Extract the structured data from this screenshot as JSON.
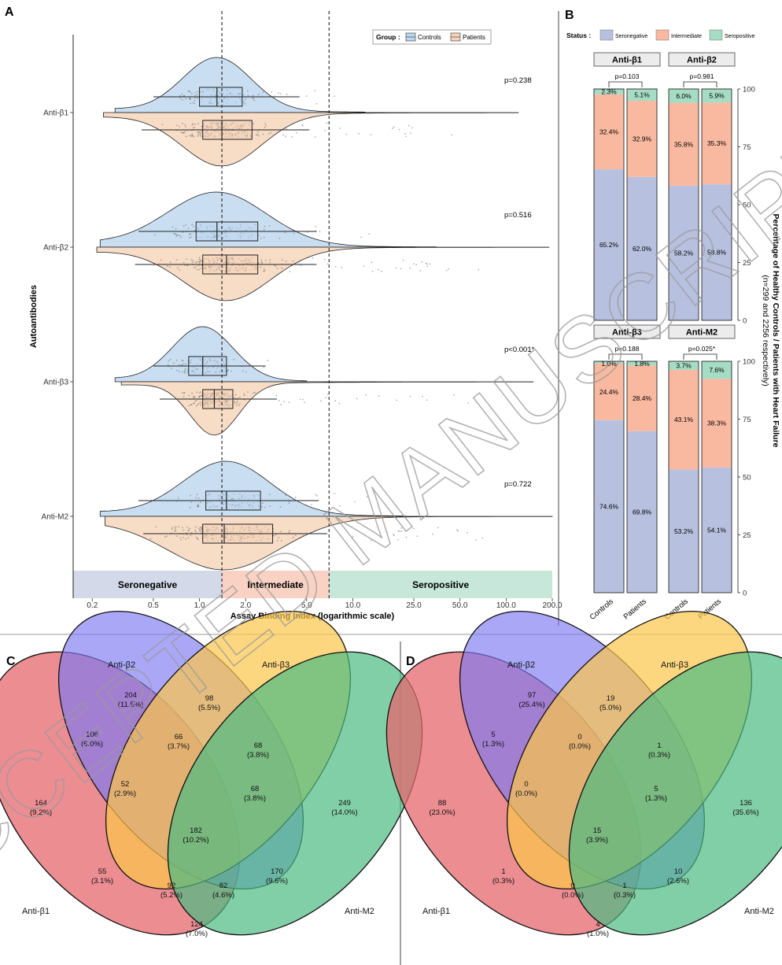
{
  "panels": {
    "a": "A",
    "b": "B",
    "c": "C",
    "d": "D"
  },
  "watermark": "ACCEPTED MANUSCRIPT",
  "panel_a": {
    "type": "raincloud",
    "y_axis_label": "Autoantibodies",
    "x_axis_label": "Assay Binding Index (logarithmic scale)",
    "x_ticks": [
      "0.2",
      "0.5",
      "1.0",
      "2.0",
      "5.0",
      "10.0",
      "25.0",
      "50.0",
      "100.0",
      "200.0"
    ],
    "x_tick_values": [
      0.2,
      0.5,
      1.0,
      2.0,
      5.0,
      10.0,
      25.0,
      50.0,
      100.0,
      200.0
    ],
    "x_range": [
      0.15,
      200
    ],
    "cutoffs": [
      1.4,
      7.0
    ],
    "legend_title": "Group :",
    "legend": [
      {
        "name": "Controls",
        "color": "#bcd6ee"
      },
      {
        "name": "Patients",
        "color": "#f5d3b8"
      }
    ],
    "zones": [
      {
        "label": "Seronegative",
        "from": 0.15,
        "to": 1.4,
        "color": "#d4d9ea"
      },
      {
        "label": "Intermediate",
        "from": 1.4,
        "to": 7.0,
        "color": "#fad2c4"
      },
      {
        "label": "Seropositive",
        "from": 7.0,
        "to": 200,
        "color": "#c6e7da"
      }
    ],
    "groups": [
      {
        "name": "Anti-β1",
        "p": "p=0.238",
        "controls": {
          "min": 0.5,
          "q1": 1.0,
          "median": 1.3,
          "q3": 1.9,
          "max": 4.5,
          "tail": 12
        },
        "patients": {
          "min": 0.42,
          "q1": 1.05,
          "median": 1.4,
          "q3": 2.2,
          "max": 5.2,
          "tail": 120
        }
      },
      {
        "name": "Anti-β2",
        "p": "p=0.516",
        "controls": {
          "min": 0.4,
          "q1": 0.95,
          "median": 1.3,
          "q3": 2.4,
          "max": 5.8,
          "tail": 35
        },
        "patients": {
          "min": 0.38,
          "q1": 1.05,
          "median": 1.5,
          "q3": 2.4,
          "max": 5.8,
          "tail": 190
        }
      },
      {
        "name": "Anti-β3",
        "p": "p<0.001*",
        "controls": {
          "min": 0.5,
          "q1": 0.85,
          "median": 1.05,
          "q3": 1.5,
          "max": 2.7,
          "tail": 5
        },
        "patients": {
          "min": 0.55,
          "q1": 1.05,
          "median": 1.25,
          "q3": 1.65,
          "max": 3.2,
          "tail": 150
        }
      },
      {
        "name": "Anti-M2",
        "p": "p=0.722",
        "controls": {
          "min": 0.4,
          "q1": 1.1,
          "median": 1.5,
          "q3": 2.5,
          "max": 6.0,
          "tail": 22
        },
        "patients": {
          "min": 0.43,
          "q1": 1.05,
          "median": 1.45,
          "q3": 3.0,
          "max": 6.8,
          "tail": 200
        }
      }
    ]
  },
  "panel_b": {
    "type": "stacked-bar",
    "legend_title": "Status :",
    "legend": [
      {
        "name": "Seronegative",
        "color": "#b7c1df"
      },
      {
        "name": "Intermediate",
        "color": "#f9b9a0"
      },
      {
        "name": "Seropositive",
        "color": "#a6dcc4"
      }
    ],
    "y_ticks": [
      "0",
      "25",
      "50",
      "75",
      "100"
    ],
    "y_label_line1": "Percentage of Healthy Controls / Patients with Heart Failure",
    "y_label_line2": "(n=299 and 2256 respectively)",
    "categories": [
      "Controls",
      "Patients"
    ],
    "facets": [
      {
        "title": "Anti-β1",
        "p": "p=0.103",
        "bars": [
          {
            "seronegative": 65.2,
            "intermediate": 32.4,
            "seropositive": 2.3
          },
          {
            "seronegative": 62.0,
            "intermediate": 32.9,
            "seropositive": 5.1
          }
        ],
        "labels": [
          [
            "65.2%",
            "32.4%",
            "2.3%"
          ],
          [
            "62.0%",
            "32.9%",
            "5.1%"
          ]
        ]
      },
      {
        "title": "Anti-β2",
        "p": "p=0.981",
        "bars": [
          {
            "seronegative": 58.2,
            "intermediate": 35.8,
            "seropositive": 6.0
          },
          {
            "seronegative": 58.8,
            "intermediate": 35.3,
            "seropositive": 5.9
          }
        ],
        "labels": [
          [
            "58.2%",
            "35.8%",
            "6.0%"
          ],
          [
            "58.8%",
            "35.3%",
            "5.9%"
          ]
        ]
      },
      {
        "title": "Anti-β3",
        "p": "p=0.188",
        "bars": [
          {
            "seronegative": 74.6,
            "intermediate": 24.4,
            "seropositive": 1.0
          },
          {
            "seronegative": 69.8,
            "intermediate": 28.4,
            "seropositive": 1.8
          }
        ],
        "labels": [
          [
            "74.6%",
            "24.4%",
            "1.0%"
          ],
          [
            "69.8%",
            "28.4%",
            "1.8%"
          ]
        ]
      },
      {
        "title": "Anti-M2",
        "p": "p=0.025*",
        "bars": [
          {
            "seronegative": 53.2,
            "intermediate": 43.1,
            "seropositive": 3.7
          },
          {
            "seronegative": 54.1,
            "intermediate": 38.3,
            "seropositive": 7.6
          }
        ],
        "labels": [
          [
            "53.2%",
            "43.1%",
            "3.7%"
          ],
          [
            "54.1%",
            "38.3%",
            "7.6%"
          ]
        ]
      }
    ]
  },
  "panel_c": {
    "type": "venn",
    "set_labels": [
      "Anti-β1",
      "Anti-β2",
      "Anti-β3",
      "Anti-M2"
    ],
    "regions": [
      {
        "n": "164",
        "pct": "(9.2%)"
      },
      {
        "n": "204",
        "pct": "(11.5%)"
      },
      {
        "n": "98",
        "pct": "(5.5%)"
      },
      {
        "n": "249",
        "pct": "(14.0%)"
      },
      {
        "n": "106",
        "pct": "(6.0%)"
      },
      {
        "n": "66",
        "pct": "(3.7%)"
      },
      {
        "n": "68",
        "pct": "(3.8%)"
      },
      {
        "n": "52",
        "pct": "(2.9%)"
      },
      {
        "n": "68",
        "pct": "(3.8%)"
      },
      {
        "n": "182",
        "pct": "(10.2%)"
      },
      {
        "n": "55",
        "pct": "(3.1%)"
      },
      {
        "n": "170",
        "pct": "(9.6%)"
      },
      {
        "n": "92",
        "pct": "(5.2%)"
      },
      {
        "n": "82",
        "pct": "(4.6%)"
      },
      {
        "n": "124",
        "pct": "(7.0%)"
      }
    ]
  },
  "panel_d": {
    "type": "venn",
    "set_labels": [
      "Anti-β1",
      "Anti-β2",
      "Anti-β3",
      "Anti-M2"
    ],
    "regions": [
      {
        "n": "88",
        "pct": "(23.0%)"
      },
      {
        "n": "97",
        "pct": "(25.4%)"
      },
      {
        "n": "19",
        "pct": "(5.0%)"
      },
      {
        "n": "136",
        "pct": "(35.6%)"
      },
      {
        "n": "5",
        "pct": "(1.3%)"
      },
      {
        "n": "0",
        "pct": "(0.0%)"
      },
      {
        "n": "1",
        "pct": "(0.3%)"
      },
      {
        "n": "0",
        "pct": "(0.0%)"
      },
      {
        "n": "5",
        "pct": "(1.3%)"
      },
      {
        "n": "15",
        "pct": "(3.9%)"
      },
      {
        "n": "1",
        "pct": "(0.3%)"
      },
      {
        "n": "10",
        "pct": "(2.6%)"
      },
      {
        "n": "0",
        "pct": "(0.0%)"
      },
      {
        "n": "1",
        "pct": "(0.3%)"
      },
      {
        "n": "4",
        "pct": "(1.0%)"
      }
    ]
  }
}
